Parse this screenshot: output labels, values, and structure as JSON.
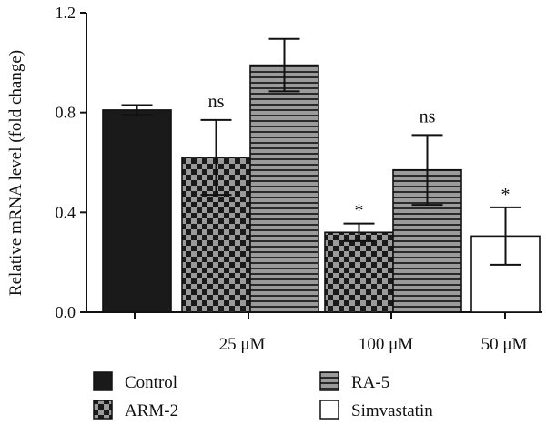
{
  "chart_data": {
    "type": "bar",
    "ylabel": "Relative mRNA level (fold change)",
    "xlabel": "",
    "ylim": [
      0,
      1.2
    ],
    "yticks": [
      "0.0",
      "0.4",
      "0.8",
      "1.2"
    ],
    "ytick_values": [
      0,
      0.4,
      0.8,
      1.2
    ],
    "groups": [
      {
        "label": "",
        "series": [
          "Control"
        ]
      },
      {
        "label": "25 μM",
        "series": [
          "ARM-2",
          "RA-5"
        ]
      },
      {
        "label": "100 μM",
        "series": [
          "ARM-2",
          "RA-5"
        ]
      },
      {
        "label": "50 μM",
        "series": [
          "Simvastatin"
        ]
      }
    ],
    "bars": [
      {
        "group": 0,
        "series": "Control",
        "value": 0.81,
        "error": 0.02,
        "annotation": ""
      },
      {
        "group": 1,
        "series": "ARM-2",
        "value": 0.62,
        "error": 0.15,
        "annotation": "ns"
      },
      {
        "group": 1,
        "series": "RA-5",
        "value": 0.99,
        "error": 0.105,
        "annotation": ""
      },
      {
        "group": 2,
        "series": "ARM-2",
        "value": 0.32,
        "error": 0.035,
        "annotation": "*"
      },
      {
        "group": 2,
        "series": "RA-5",
        "value": 0.57,
        "error": 0.14,
        "annotation": "ns"
      },
      {
        "group": 3,
        "series": "Simvastatin",
        "value": 0.305,
        "error": 0.115,
        "annotation": "*"
      }
    ],
    "legend": [
      {
        "name": "Control",
        "pattern": "solid-black"
      },
      {
        "name": "ARM-2",
        "pattern": "checkerboard"
      },
      {
        "name": "RA-5",
        "pattern": "horizontal-stripes"
      },
      {
        "name": "Simvastatin",
        "pattern": "white"
      }
    ],
    "legend_position": "bottom",
    "grid": false
  }
}
